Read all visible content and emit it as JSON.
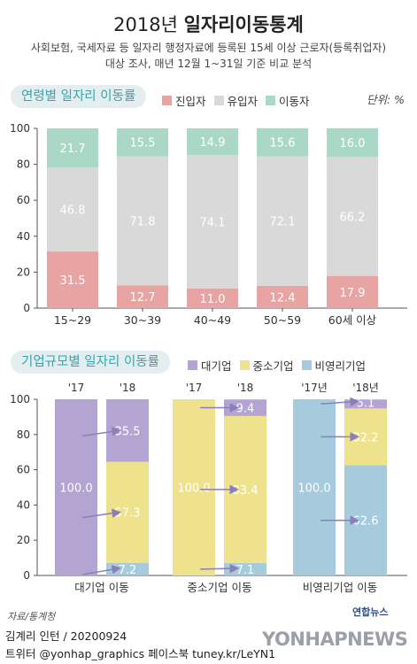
{
  "header": {
    "title_light": "2018년",
    "title_bold": "일자리이동통계",
    "subtitle_line1": "사회보험, 국세자료 등 일자리 행정자료에 등록된 15세 이상 근로자(등록취업자)",
    "subtitle_line2": "대상 조사, 매년 12월 1~31일 기준 비교 분석"
  },
  "colors": {
    "entry": "#e8a3a3",
    "stay": "#d9d9d9",
    "move": "#a9d9c6",
    "large": "#b4a4d2",
    "sme": "#efe28c",
    "nonprofit": "#a6cbdd",
    "arrow": "#8a7fb9"
  },
  "chart_data": [
    {
      "type": "bar",
      "title": "연령별 일자리 이동률",
      "unit": "단위: %",
      "categories": [
        "15~29",
        "30~39",
        "40~49",
        "50~59",
        "60세 이상"
      ],
      "series": [
        {
          "name": "진입자",
          "values": [
            31.5,
            12.7,
            11.0,
            12.4,
            17.9
          ]
        },
        {
          "name": "유입자",
          "values": [
            46.8,
            71.8,
            74.1,
            72.1,
            66.2
          ]
        },
        {
          "name": "이동자",
          "values": [
            21.7,
            15.5,
            14.9,
            15.6,
            16.0
          ]
        }
      ],
      "ylim": [
        0,
        100
      ],
      "yticks": [
        "0",
        "20",
        "40",
        "60",
        "80",
        "100"
      ],
      "stacked": true,
      "legend": "top"
    },
    {
      "type": "bar",
      "title": "기업규모별 일자리 이동률",
      "groups": [
        {
          "label": "대기업 이동",
          "year_labels": [
            "'17",
            "'18"
          ],
          "base_value": 100.0,
          "base_name": "대기업",
          "stack": [
            {
              "name": "비영리기업",
              "value": 7.2
            },
            {
              "name": "중소기업",
              "value": 57.3
            },
            {
              "name": "대기업",
              "value": 35.5
            }
          ]
        },
        {
          "label": "중소기업 이동",
          "year_labels": [
            "'17",
            "'18"
          ],
          "base_value": 100.0,
          "base_name": "중소기업",
          "stack": [
            {
              "name": "비영리기업",
              "value": 7.1
            },
            {
              "name": "중소기업",
              "value": 83.4
            },
            {
              "name": "대기업",
              "value": 9.4
            }
          ]
        },
        {
          "label": "비영리기업 이동",
          "year_labels": [
            "'17년",
            "'18년"
          ],
          "base_value": 100.0,
          "base_name": "비영리기업",
          "stack": [
            {
              "name": "비영리기업",
              "value": 62.6
            },
            {
              "name": "중소기업",
              "value": 32.2
            },
            {
              "name": "대기업",
              "value": 5.1
            }
          ]
        }
      ],
      "series_names": [
        "대기업",
        "중소기업",
        "비영리기업"
      ],
      "ylim": [
        0,
        100
      ],
      "yticks": [
        "0",
        "20",
        "40",
        "60",
        "80",
        "100"
      ],
      "stacked": true,
      "legend": "top"
    }
  ],
  "footer": {
    "source": "자료/통계청",
    "author": "김계리 인턴 / 20200924",
    "social": "트위터 @yonhap_graphics  페이스북 tuney.kr/LeYN1",
    "logo_small": "연합뉴스",
    "logo_big": "YONHAPNEWS"
  }
}
